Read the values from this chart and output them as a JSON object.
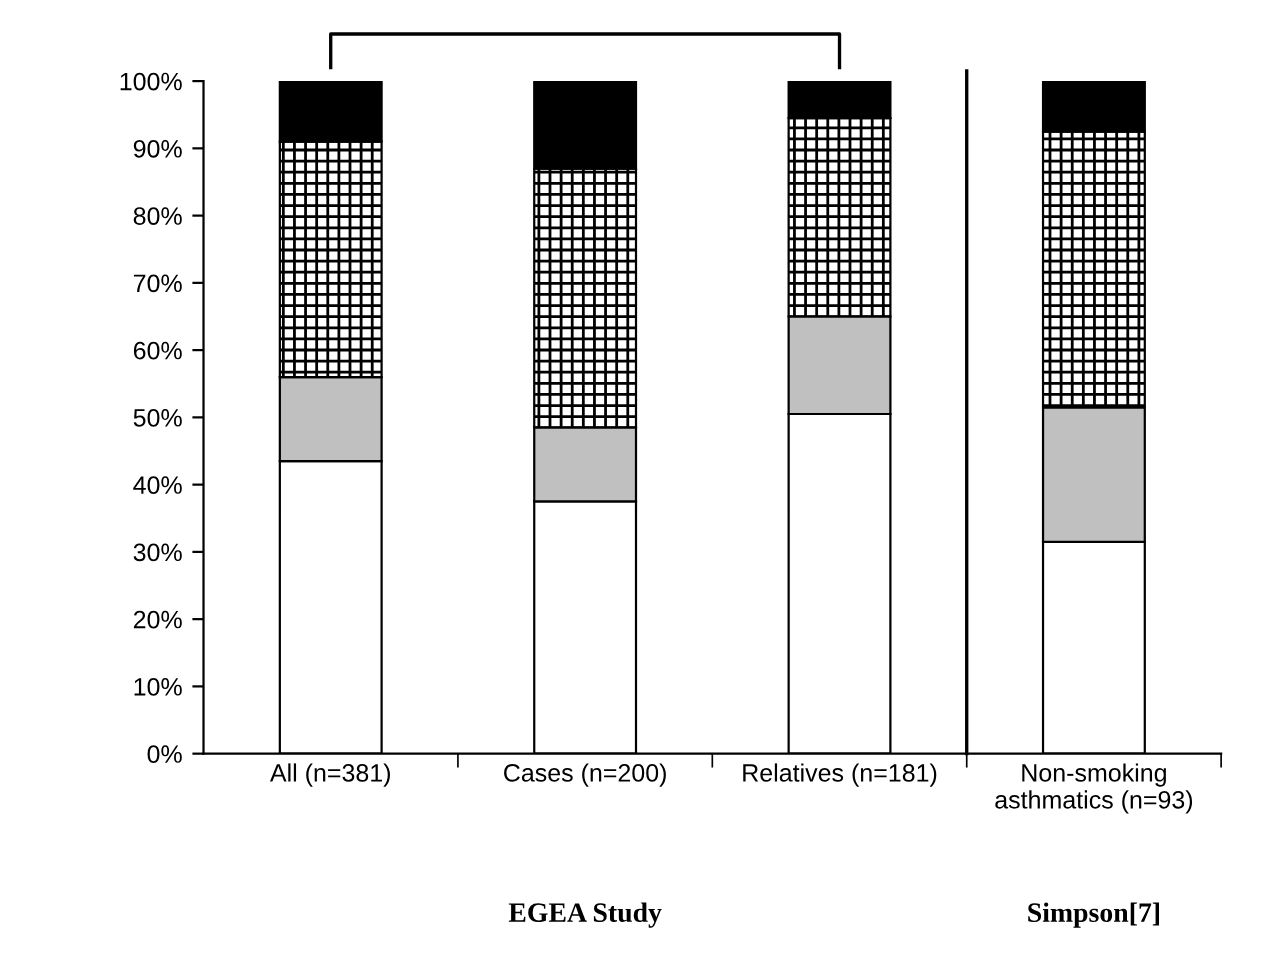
{
  "chart_data": {
    "type": "bar",
    "stacked": true,
    "categories": [
      "All (n=381)",
      "Cases (n=200)",
      "Relatives (n=181)",
      "Non-smoking\nasthmatics (n=93)"
    ],
    "series": [
      {
        "color": "#ffffff",
        "values": [
          43.5,
          37.5,
          50.5,
          31.5
        ]
      },
      {
        "color": "#c0c0c0",
        "values": [
          12.5,
          11,
          14.5,
          20
        ]
      },
      {
        "color": "#000000",
        "values": [
          35,
          38.5,
          29.5,
          41
        ]
      },
      {
        "color": "#000000",
        "values": [
          9,
          13,
          5.5,
          7.5
        ]
      }
    ],
    "ylim": [
      0,
      100
    ],
    "yticks": [
      {
        "value": 0,
        "label": "0%"
      },
      {
        "value": 10,
        "label": "10%"
      },
      {
        "value": 20,
        "label": "20%"
      },
      {
        "value": 30,
        "label": "30%"
      },
      {
        "value": 40,
        "label": "40%"
      },
      {
        "value": 50,
        "label": "50%"
      },
      {
        "value": 60,
        "label": "60%"
      },
      {
        "value": 70,
        "label": "70%"
      },
      {
        "value": 80,
        "label": "80%"
      },
      {
        "value": 90,
        "label": "90%"
      },
      {
        "value": 100,
        "label": "100%"
      }
    ],
    "annotations": [
      "EGEA Study",
      "Simpson[7]"
    ],
    "grid": false,
    "legend": false
  }
}
